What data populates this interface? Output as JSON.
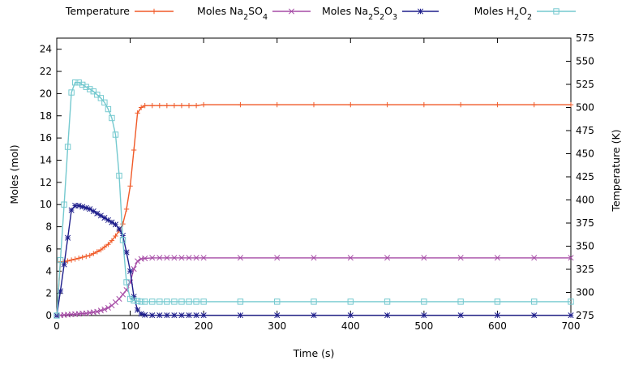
{
  "chart_data": {
    "type": "line",
    "xlabel": "Time (s)",
    "ylabel": "Moles (mol)",
    "y2label": "Temperature (K)",
    "xlim": [
      0,
      700
    ],
    "ylim": [
      0,
      25
    ],
    "y2lim": [
      275,
      575
    ],
    "grid": false,
    "legend_position": "top",
    "x_ticks": [
      0,
      100,
      200,
      300,
      400,
      500,
      600,
      700
    ],
    "y_ticks": [
      0,
      2,
      4,
      6,
      8,
      10,
      12,
      14,
      16,
      18,
      20,
      22,
      24
    ],
    "y2_ticks": [
      275,
      300,
      325,
      350,
      375,
      400,
      425,
      450,
      475,
      500,
      525,
      550,
      575
    ],
    "series": [
      {
        "name": "Temperature",
        "axis": "right",
        "color": "#f05a28",
        "marker": "plus",
        "x": [
          0,
          5,
          10,
          15,
          20,
          25,
          30,
          35,
          40,
          45,
          50,
          55,
          60,
          65,
          70,
          75,
          80,
          85,
          90,
          95,
          100,
          105,
          110,
          115,
          120,
          130,
          140,
          150,
          160,
          170,
          180,
          190,
          200,
          250,
          300,
          350,
          400,
          450,
          500,
          550,
          600,
          650,
          700
        ],
        "y": [
          275,
          333,
          333,
          334,
          335,
          336,
          337,
          338,
          339,
          340,
          342,
          344,
          346,
          349,
          352,
          356,
          361,
          367,
          374,
          390,
          415,
          454,
          494,
          500,
          502,
          502,
          502,
          502,
          502,
          502,
          502,
          502,
          503,
          503,
          503,
          503,
          503,
          503,
          503,
          503,
          503,
          503,
          503
        ]
      },
      {
        "name": "Moles Na2SO4",
        "axis": "left",
        "color": "#a64ca6",
        "marker": "x",
        "x": [
          0,
          5,
          10,
          15,
          20,
          25,
          30,
          35,
          40,
          45,
          50,
          55,
          60,
          65,
          70,
          75,
          80,
          85,
          90,
          95,
          100,
          105,
          110,
          115,
          120,
          130,
          140,
          150,
          160,
          170,
          180,
          190,
          200,
          250,
          300,
          350,
          400,
          450,
          500,
          550,
          600,
          650,
          700
        ],
        "y": [
          0,
          0.02,
          0.05,
          0.08,
          0.1,
          0.12,
          0.15,
          0.18,
          0.2,
          0.25,
          0.3,
          0.35,
          0.45,
          0.55,
          0.7,
          0.9,
          1.2,
          1.5,
          1.9,
          2.3,
          3.0,
          4.2,
          4.9,
          5.1,
          5.15,
          5.2,
          5.2,
          5.2,
          5.2,
          5.2,
          5.2,
          5.2,
          5.2,
          5.2,
          5.2,
          5.2,
          5.2,
          5.2,
          5.2,
          5.2,
          5.2,
          5.2,
          5.2
        ]
      },
      {
        "name": "Moles Na2S2O3",
        "axis": "left",
        "color": "#1f1f8c",
        "marker": "star",
        "x": [
          0,
          5,
          10,
          15,
          20,
          25,
          30,
          35,
          40,
          45,
          50,
          55,
          60,
          65,
          70,
          75,
          80,
          85,
          90,
          95,
          100,
          105,
          110,
          115,
          120,
          130,
          140,
          150,
          160,
          170,
          180,
          190,
          200,
          250,
          300,
          350,
          400,
          450,
          500,
          550,
          600,
          650,
          700
        ],
        "y": [
          0,
          2.2,
          4.6,
          7.0,
          9.5,
          9.9,
          9.9,
          9.8,
          9.7,
          9.6,
          9.4,
          9.2,
          9.0,
          8.8,
          8.6,
          8.4,
          8.2,
          7.8,
          7.2,
          5.7,
          4.0,
          1.7,
          0.5,
          0.15,
          0.05,
          0.02,
          0.02,
          0.02,
          0.02,
          0.02,
          0.02,
          0.02,
          0.02,
          0.02,
          0.02,
          0.02,
          0.02,
          0.02,
          0.02,
          0.02,
          0.02,
          0.02,
          0.02
        ]
      },
      {
        "name": "Moles H2O2",
        "axis": "left",
        "color": "#74c9cf",
        "marker": "square",
        "x": [
          0,
          5,
          10,
          15,
          20,
          25,
          30,
          35,
          40,
          45,
          50,
          55,
          60,
          65,
          70,
          75,
          80,
          85,
          90,
          95,
          100,
          105,
          110,
          115,
          120,
          130,
          140,
          150,
          160,
          170,
          180,
          190,
          200,
          250,
          300,
          350,
          400,
          450,
          500,
          550,
          600,
          650,
          700
        ],
        "y": [
          0,
          5.0,
          10.0,
          15.2,
          20.1,
          21.0,
          21.0,
          20.8,
          20.6,
          20.4,
          20.2,
          19.9,
          19.6,
          19.2,
          18.6,
          17.8,
          16.3,
          12.6,
          6.8,
          3.0,
          1.5,
          1.35,
          1.3,
          1.25,
          1.25,
          1.25,
          1.25,
          1.25,
          1.25,
          1.25,
          1.25,
          1.25,
          1.25,
          1.25,
          1.25,
          1.25,
          1.25,
          1.25,
          1.25,
          1.25,
          1.25,
          1.25,
          1.25
        ]
      }
    ]
  }
}
